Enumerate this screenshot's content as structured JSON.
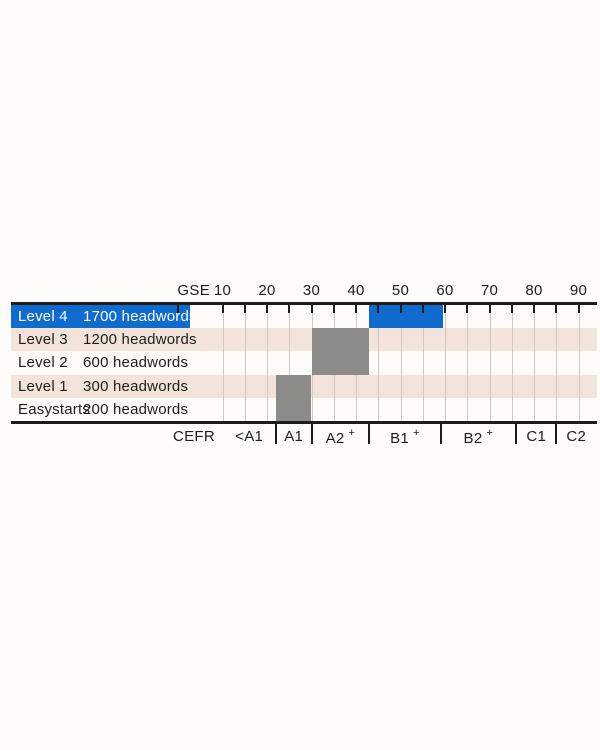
{
  "colors": {
    "page_background": "#fdfcf9",
    "highlight_blue": "#0f6cce",
    "range_gray": "#8b8b88",
    "stripe_pink": "#f3e3da",
    "row_white": "#fdfcf9",
    "grid_line": "#cfc7c0",
    "axis_black": "#1c1c1a",
    "text_black": "#1d1d1b",
    "text_white": "#ffffff"
  },
  "chart_data": {
    "type": "bar",
    "orientation": "horizontal-range",
    "title": "",
    "top_axis": {
      "label": "GSE",
      "min": 0,
      "max": 94,
      "major_tick_labels": [
        10,
        20,
        30,
        40,
        50,
        60,
        70,
        80,
        90
      ],
      "minor_tick_values": [
        0,
        10,
        15,
        20,
        25,
        30,
        35,
        40,
        45,
        50,
        55,
        60,
        65,
        70,
        75,
        80,
        85,
        90
      ],
      "gridline_values": [
        10,
        15,
        20,
        25,
        30,
        35,
        40,
        45,
        50,
        55,
        60,
        65,
        70,
        75,
        80,
        85,
        90
      ],
      "grid": true
    },
    "rows": [
      {
        "label": "Level 4",
        "headwords": "1700 headwords",
        "headwords_value": 1700,
        "gse_start": 43,
        "gse_end": 59.5,
        "highlighted": true,
        "shaded": false
      },
      {
        "label": "Level 3",
        "headwords": "1200 headwords",
        "headwords_value": 1200,
        "gse_start": 30,
        "gse_end": 43,
        "highlighted": false,
        "shaded": true
      },
      {
        "label": "Level 2",
        "headwords": "600 headwords",
        "headwords_value": 600,
        "gse_start": 30,
        "gse_end": 43,
        "highlighted": false,
        "shaded": false
      },
      {
        "label": "Level 1",
        "headwords": "300 headwords",
        "headwords_value": 300,
        "gse_start": 22,
        "gse_end": 30,
        "highlighted": false,
        "shaded": true
      },
      {
        "label": "Easystarts",
        "headwords": "200 headwords",
        "headwords_value": 200,
        "gse_start": 22,
        "gse_end": 30,
        "highlighted": false,
        "shaded": false
      }
    ],
    "bottom_axis": {
      "label": "CEFR",
      "bands": [
        {
          "label": "<A1",
          "plus": false,
          "gse_start": 10,
          "gse_end": 22
        },
        {
          "label": "A1",
          "plus": false,
          "gse_start": 22,
          "gse_end": 30
        },
        {
          "label": "A2",
          "plus": true,
          "gse_start": 30,
          "gse_end": 43
        },
        {
          "label": "B1",
          "plus": true,
          "gse_start": 43,
          "gse_end": 59
        },
        {
          "label": "B2",
          "plus": true,
          "gse_start": 59,
          "gse_end": 76
        },
        {
          "label": "C1",
          "plus": false,
          "gse_start": 76,
          "gse_end": 85
        },
        {
          "label": "C2",
          "plus": false,
          "gse_start": 85,
          "gse_end": 94
        }
      ],
      "divider_values": [
        22,
        30,
        43,
        59,
        76,
        85
      ]
    },
    "legend": null
  }
}
